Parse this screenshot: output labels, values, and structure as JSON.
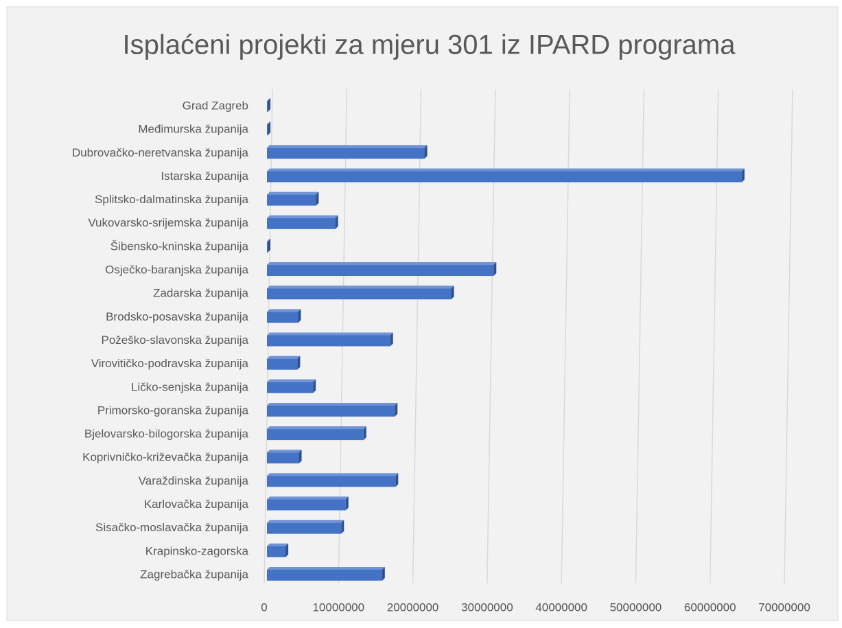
{
  "chart_data": {
    "type": "bar",
    "orientation": "horizontal",
    "title": "Isplaćeni projekti za mjeru 301 iz IPARD programa",
    "categories": [
      "Grad Zagreb",
      "Međimurska županija",
      "Dubrovačko-neretvanska županija",
      "Istarska županija",
      "Splitsko-dalmatinska županija",
      "Vukovarsko-srijemska županija",
      "Šibensko-kninska županija",
      "Osječko-baranjska županija",
      "Zadarska županija",
      "Brodsko-posavska županija",
      "Požeško-slavonska županija",
      "Virovitičko-podravska županija",
      "Ličko-senjska županija",
      "Primorsko-goranska županija",
      "Bjelovarsko-bilogorska županija",
      "Koprivničko-križevačka županija",
      "Varaždinska županija",
      "Karlovačka županija",
      "Sisačko-moslavačka županija",
      "Krapinsko-zagorska",
      "Zagrebačka županija"
    ],
    "values": [
      100000,
      100000,
      21200000,
      63900000,
      6600000,
      9200000,
      100000,
      30500000,
      24800000,
      4200000,
      16600000,
      4100000,
      6200000,
      17200000,
      13000000,
      4300000,
      17300000,
      10600000,
      10000000,
      2500000,
      15500000
    ],
    "color": "#4472c4",
    "xlim": [
      0,
      70000000
    ],
    "xticks": [
      0,
      10000000,
      20000000,
      30000000,
      40000000,
      50000000,
      60000000,
      70000000
    ],
    "grid": true
  }
}
